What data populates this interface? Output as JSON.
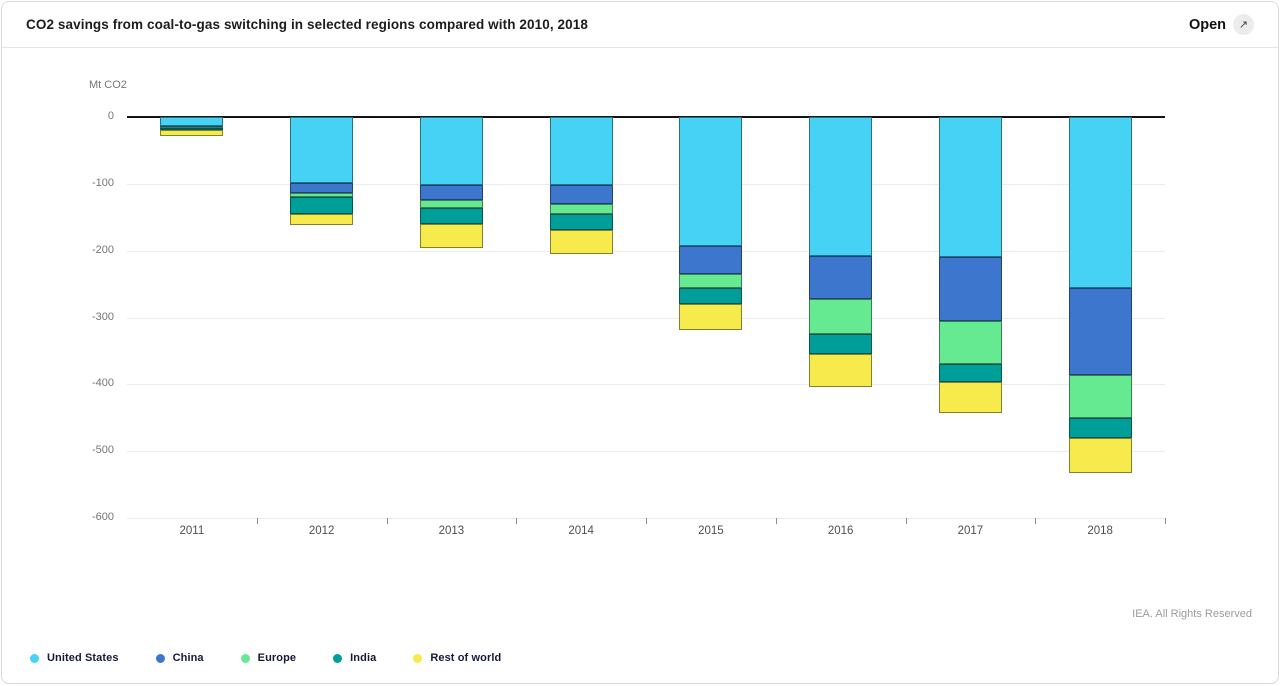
{
  "header": {
    "title": "CO2 savings from coal-to-gas switching in selected regions compared with 2010, 2018",
    "open_label": "Open",
    "open_icon": "↗"
  },
  "footer": {
    "attribution": "IEA. All Rights Reserved"
  },
  "chart_data": {
    "type": "bar",
    "stacked": true,
    "title": "CO2 savings from coal-to-gas switching in selected regions compared with 2010, 2018",
    "unit_label": "Mt CO2",
    "categories": [
      "2011",
      "2012",
      "2013",
      "2014",
      "2015",
      "2016",
      "2017",
      "2018"
    ],
    "series": [
      {
        "name": "United States",
        "color": "#45d2f5",
        "values": [
          -13,
          -99,
          -102,
          -102,
          -193,
          -208,
          -209,
          -256
        ]
      },
      {
        "name": "China",
        "color": "#3c77cd",
        "values": [
          -2,
          -15,
          -22,
          -28,
          -42,
          -64,
          -96,
          -130
        ]
      },
      {
        "name": "Europe",
        "color": "#65ea92",
        "values": [
          -2,
          -6,
          -12,
          -15,
          -21,
          -52,
          -64,
          -64
        ]
      },
      {
        "name": "India",
        "color": "#009e98",
        "values": [
          -3,
          -25,
          -24,
          -24,
          -24,
          -31,
          -28,
          -30
        ]
      },
      {
        "name": "Rest of world",
        "color": "#f6ea4d",
        "values": [
          -8,
          -16,
          -36,
          -36,
          -39,
          -49,
          -46,
          -52
        ]
      }
    ],
    "totals": [
      -28,
      -161,
      -196,
      -205,
      -319,
      -404,
      -443,
      -532
    ],
    "ylim": [
      -600,
      0
    ],
    "ytick_step": 100,
    "yticks": [
      0,
      -100,
      -200,
      -300,
      -400,
      -500,
      -600
    ],
    "grid": true,
    "legend_position": "bottom"
  }
}
